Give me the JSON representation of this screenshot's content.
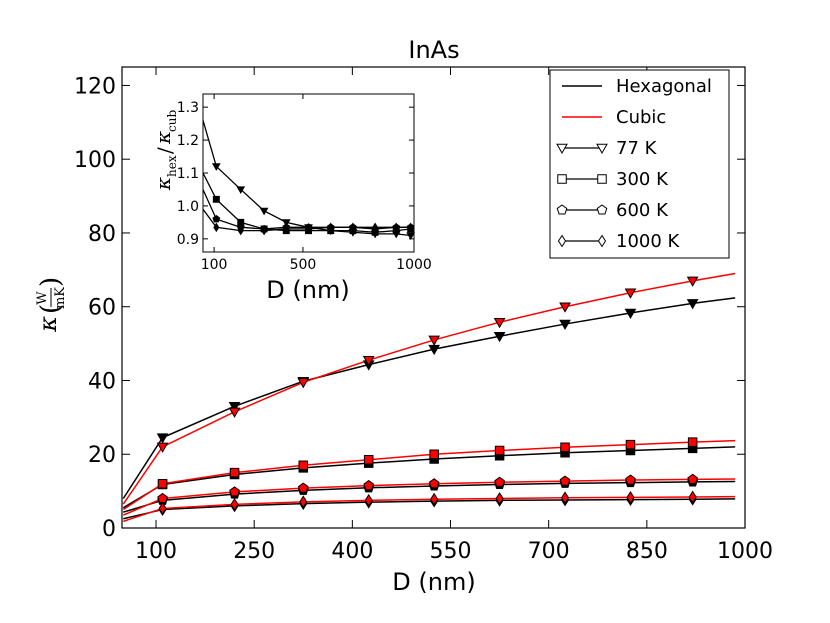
{
  "chart_data": [
    {
      "type": "line",
      "title": "InAs",
      "xlabel": "D (nm)",
      "ylabel": {
        "symbol": "κ",
        "numerator": "W",
        "denominator": "mK"
      },
      "xlim": [
        48,
        1000
      ],
      "ylim": [
        0,
        125
      ],
      "xticks": [
        100,
        250,
        400,
        550,
        700,
        850,
        1000
      ],
      "yticks": [
        0,
        20,
        40,
        60,
        80,
        100,
        120
      ],
      "grid": false,
      "legend_position": "top-right",
      "legend": [
        {
          "label": "Hexagonal",
          "kind": "line",
          "color": "#000000"
        },
        {
          "label": "Cubic",
          "kind": "line",
          "color": "#ff0000"
        },
        {
          "label": "77 K",
          "kind": "marker",
          "marker": "triangle-down"
        },
        {
          "label": "300 K",
          "kind": "marker",
          "marker": "square"
        },
        {
          "label": "600 K",
          "kind": "marker",
          "marker": "pentagon"
        },
        {
          "label": "1000 K",
          "kind": "marker",
          "marker": "diamond"
        }
      ],
      "x": [
        50,
        110,
        220,
        325,
        425,
        525,
        625,
        725,
        825,
        920,
        985
      ],
      "series": [
        {
          "temperature": "77 K",
          "phase": "hex",
          "color": "#000000",
          "marker": "triangle-down",
          "values": [
            8.0,
            24.5,
            33.0,
            39.8,
            44.3,
            48.5,
            52.0,
            55.3,
            58.3,
            60.9,
            62.4
          ]
        },
        {
          "temperature": "77 K",
          "phase": "cub",
          "color": "#ff0000",
          "marker": "triangle-down",
          "values": [
            6.5,
            22.0,
            31.5,
            39.5,
            45.5,
            51.0,
            55.8,
            60.0,
            63.8,
            67.0,
            69.0
          ]
        },
        {
          "temperature": "300 K",
          "phase": "hex",
          "color": "#000000",
          "marker": "square",
          "values": [
            5.5,
            11.8,
            14.5,
            16.3,
            17.6,
            18.7,
            19.6,
            20.4,
            21.0,
            21.6,
            22.0
          ]
        },
        {
          "temperature": "300 K",
          "phase": "cub",
          "color": "#ff0000",
          "marker": "square",
          "values": [
            5.0,
            12.0,
            15.0,
            17.0,
            18.5,
            20.0,
            21.0,
            21.9,
            22.6,
            23.3,
            23.7
          ]
        },
        {
          "temperature": "600 K",
          "phase": "hex",
          "color": "#000000",
          "marker": "pentagon",
          "values": [
            4.3,
            7.5,
            9.2,
            10.2,
            10.9,
            11.4,
            11.8,
            12.1,
            12.3,
            12.5,
            12.6
          ]
        },
        {
          "temperature": "600 K",
          "phase": "cub",
          "color": "#ff0000",
          "marker": "pentagon",
          "values": [
            3.5,
            8.0,
            9.8,
            10.8,
            11.5,
            12.0,
            12.4,
            12.7,
            13.0,
            13.2,
            13.3
          ]
        },
        {
          "temperature": "1000 K",
          "phase": "hex",
          "color": "#000000",
          "marker": "diamond",
          "values": [
            2.5,
            5.0,
            6.0,
            6.6,
            7.0,
            7.3,
            7.5,
            7.6,
            7.7,
            7.8,
            7.9
          ]
        },
        {
          "temperature": "1000 K",
          "phase": "cub",
          "color": "#ff0000",
          "marker": "diamond",
          "values": [
            1.8,
            5.3,
            6.4,
            7.1,
            7.5,
            7.8,
            8.0,
            8.2,
            8.3,
            8.4,
            8.5
          ]
        }
      ]
    },
    {
      "type": "line",
      "title": "",
      "xlabel": "D (nm)",
      "ylabel": {
        "numerator": "κ",
        "numerator_sub": "hex",
        "denominator": "κ",
        "denominator_sub": "cub"
      },
      "xlim": [
        50,
        1000
      ],
      "ylim": [
        0.86,
        1.34
      ],
      "xticks": [
        100,
        500,
        1000
      ],
      "yticks": [
        0.9,
        1.0,
        1.1,
        1.2,
        1.3
      ],
      "grid": false,
      "x": [
        50,
        110,
        220,
        325,
        425,
        525,
        625,
        725,
        825,
        920,
        985
      ],
      "series": [
        {
          "temperature": "77 K",
          "marker": "triangle-down",
          "values": [
            1.26,
            1.12,
            1.05,
            0.985,
            0.95,
            0.935,
            0.925,
            0.92,
            0.915,
            0.915,
            0.91
          ]
        },
        {
          "temperature": "300 K",
          "marker": "square",
          "values": [
            1.1,
            1.02,
            0.95,
            0.93,
            0.925,
            0.925,
            0.925,
            0.925,
            0.92,
            0.925,
            0.93
          ]
        },
        {
          "temperature": "600 K",
          "marker": "pentagon",
          "values": [
            1.05,
            0.96,
            0.935,
            0.93,
            0.935,
            0.935,
            0.935,
            0.935,
            0.93,
            0.935,
            0.935
          ]
        },
        {
          "temperature": "1000 K",
          "marker": "diamond",
          "values": [
            0.99,
            0.935,
            0.925,
            0.925,
            0.93,
            0.93,
            0.935,
            0.935,
            0.935,
            0.935,
            0.935
          ]
        }
      ]
    }
  ]
}
